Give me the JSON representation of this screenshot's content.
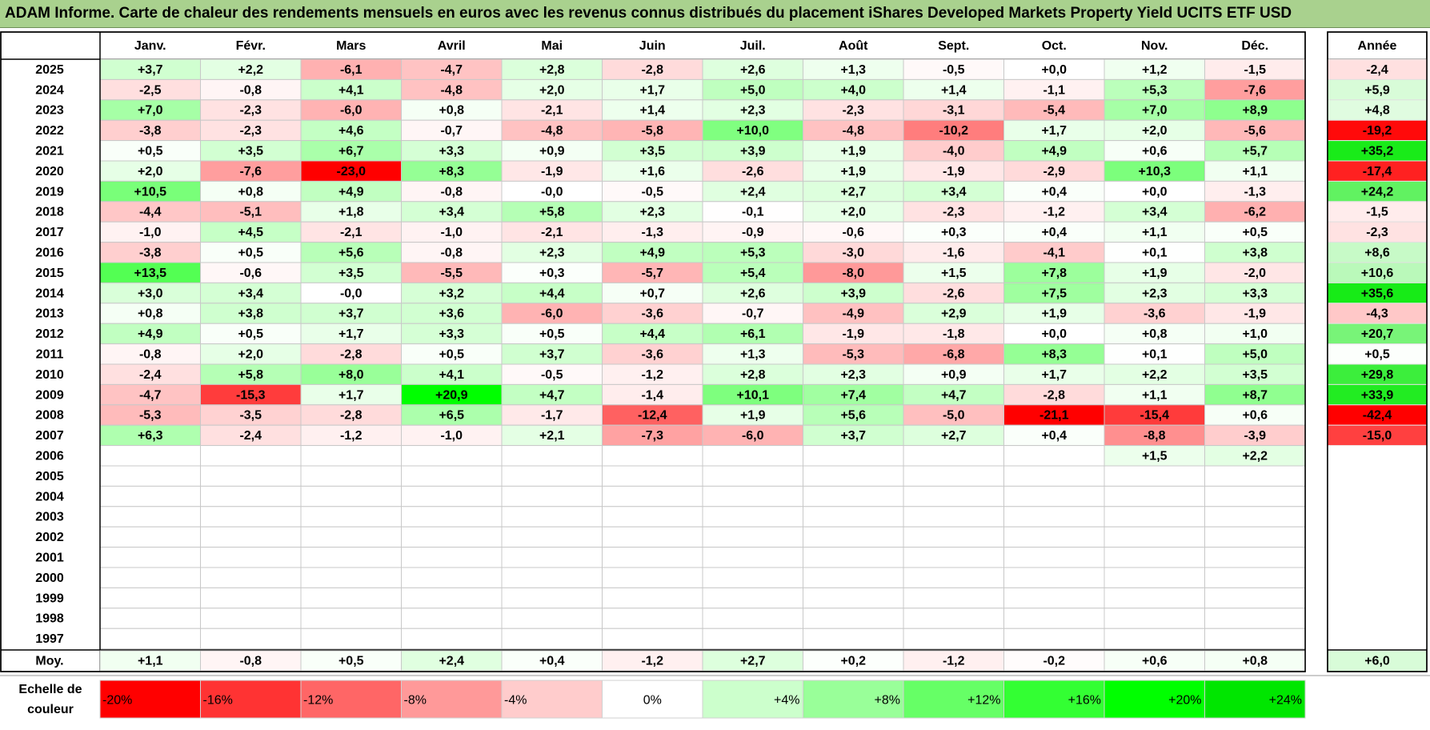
{
  "title": "ADAM Informe. Carte de chaleur des rendements mensuels en euros avec les revenus connus distribués du placement iShares Developed Markets Property Yield UCITS ETF USD",
  "chart_data": {
    "type": "heatmap",
    "columns": [
      "Janv.",
      "Févr.",
      "Mars",
      "Avril",
      "Mai",
      "Juin",
      "Juil.",
      "Août",
      "Sept.",
      "Oct.",
      "Nov.",
      "Déc."
    ],
    "year_column_label": "Année",
    "average_row_label": "Moy.",
    "rows": [
      {
        "year": "2025",
        "months": [
          "+3,7",
          "+2,2",
          "-6,1",
          "-4,7",
          "+2,8",
          "-2,8",
          "+2,6",
          "+1,3",
          "-0,5",
          "+0,0",
          "+1,2",
          "-1,5"
        ],
        "annual": "-2,4"
      },
      {
        "year": "2024",
        "months": [
          "-2,5",
          "-0,8",
          "+4,1",
          "-4,8",
          "+2,0",
          "+1,7",
          "+5,0",
          "+4,0",
          "+1,4",
          "-1,1",
          "+5,3",
          "-7,6"
        ],
        "annual": "+5,9"
      },
      {
        "year": "2023",
        "months": [
          "+7,0",
          "-2,3",
          "-6,0",
          "+0,8",
          "-2,1",
          "+1,4",
          "+2,3",
          "-2,3",
          "-3,1",
          "-5,4",
          "+7,0",
          "+8,9"
        ],
        "annual": "+4,8"
      },
      {
        "year": "2022",
        "months": [
          "-3,8",
          "-2,3",
          "+4,6",
          "-0,7",
          "-4,8",
          "-5,8",
          "+10,0",
          "-4,8",
          "-10,2",
          "+1,7",
          "+2,0",
          "-5,6"
        ],
        "annual": "-19,2"
      },
      {
        "year": "2021",
        "months": [
          "+0,5",
          "+3,5",
          "+6,7",
          "+3,3",
          "+0,9",
          "+3,5",
          "+3,9",
          "+1,9",
          "-4,0",
          "+4,9",
          "+0,6",
          "+5,7"
        ],
        "annual": "+35,2"
      },
      {
        "year": "2020",
        "months": [
          "+2,0",
          "-7,6",
          "-23,0",
          "+8,3",
          "-1,9",
          "+1,6",
          "-2,6",
          "+1,9",
          "-1,9",
          "-2,9",
          "+10,3",
          "+1,1"
        ],
        "annual": "-17,4"
      },
      {
        "year": "2019",
        "months": [
          "+10,5",
          "+0,8",
          "+4,9",
          "-0,8",
          "-0,0",
          "-0,5",
          "+2,4",
          "+2,7",
          "+3,4",
          "+0,4",
          "+0,0",
          "-1,3"
        ],
        "annual": "+24,2"
      },
      {
        "year": "2018",
        "months": [
          "-4,4",
          "-5,1",
          "+1,8",
          "+3,4",
          "+5,8",
          "+2,3",
          "-0,1",
          "+2,0",
          "-2,3",
          "-1,2",
          "+3,4",
          "-6,2"
        ],
        "annual": "-1,5"
      },
      {
        "year": "2017",
        "months": [
          "-1,0",
          "+4,5",
          "-2,1",
          "-1,0",
          "-2,1",
          "-1,3",
          "-0,9",
          "-0,6",
          "+0,3",
          "+0,4",
          "+1,1",
          "+0,5"
        ],
        "annual": "-2,3"
      },
      {
        "year": "2016",
        "months": [
          "-3,8",
          "+0,5",
          "+5,6",
          "-0,8",
          "+2,3",
          "+4,9",
          "+5,3",
          "-3,0",
          "-1,6",
          "-4,1",
          "+0,1",
          "+3,8"
        ],
        "annual": "+8,6"
      },
      {
        "year": "2015",
        "months": [
          "+13,5",
          "-0,6",
          "+3,5",
          "-5,5",
          "+0,3",
          "-5,7",
          "+5,4",
          "-8,0",
          "+1,5",
          "+7,8",
          "+1,9",
          "-2,0"
        ],
        "annual": "+10,6"
      },
      {
        "year": "2014",
        "months": [
          "+3,0",
          "+3,4",
          "-0,0",
          "+3,2",
          "+4,4",
          "+0,7",
          "+2,6",
          "+3,9",
          "-2,6",
          "+7,5",
          "+2,3",
          "+3,3"
        ],
        "annual": "+35,6"
      },
      {
        "year": "2013",
        "months": [
          "+0,8",
          "+3,8",
          "+3,7",
          "+3,6",
          "-6,0",
          "-3,6",
          "-0,7",
          "-4,9",
          "+2,9",
          "+1,9",
          "-3,6",
          "-1,9"
        ],
        "annual": "-4,3"
      },
      {
        "year": "2012",
        "months": [
          "+4,9",
          "+0,5",
          "+1,7",
          "+3,3",
          "+0,5",
          "+4,4",
          "+6,1",
          "-1,9",
          "-1,8",
          "+0,0",
          "+0,8",
          "+1,0"
        ],
        "annual": "+20,7"
      },
      {
        "year": "2011",
        "months": [
          "-0,8",
          "+2,0",
          "-2,8",
          "+0,5",
          "+3,7",
          "-3,6",
          "+1,3",
          "-5,3",
          "-6,8",
          "+8,3",
          "+0,1",
          "+5,0"
        ],
        "annual": "+0,5"
      },
      {
        "year": "2010",
        "months": [
          "-2,4",
          "+5,8",
          "+8,0",
          "+4,1",
          "-0,5",
          "-1,2",
          "+2,8",
          "+2,3",
          "+0,9",
          "+1,7",
          "+2,2",
          "+3,5"
        ],
        "annual": "+29,8"
      },
      {
        "year": "2009",
        "months": [
          "-4,7",
          "-15,3",
          "+1,7",
          "+20,9",
          "+4,7",
          "-1,4",
          "+10,1",
          "+7,4",
          "+4,7",
          "-2,8",
          "+1,1",
          "+8,7"
        ],
        "annual": "+33,9"
      },
      {
        "year": "2008",
        "months": [
          "-5,3",
          "-3,5",
          "-2,8",
          "+6,5",
          "-1,7",
          "-12,4",
          "+1,9",
          "+5,6",
          "-5,0",
          "-21,1",
          "-15,4",
          "+0,6"
        ],
        "annual": "-42,4"
      },
      {
        "year": "2007",
        "months": [
          "+6,3",
          "-2,4",
          "-1,2",
          "-1,0",
          "+2,1",
          "-7,3",
          "-6,0",
          "+3,7",
          "+2,7",
          "+0,4",
          "-8,8",
          "-3,9"
        ],
        "annual": "-15,0"
      },
      {
        "year": "2006",
        "months": [
          "",
          "",
          "",
          "",
          "",
          "",
          "",
          "",
          "",
          "",
          "+1,5",
          "+2,2"
        ],
        "annual": ""
      },
      {
        "year": "2005",
        "months": [
          "",
          "",
          "",
          "",
          "",
          "",
          "",
          "",
          "",
          "",
          "",
          ""
        ],
        "annual": ""
      },
      {
        "year": "2004",
        "months": [
          "",
          "",
          "",
          "",
          "",
          "",
          "",
          "",
          "",
          "",
          "",
          ""
        ],
        "annual": ""
      },
      {
        "year": "2003",
        "months": [
          "",
          "",
          "",
          "",
          "",
          "",
          "",
          "",
          "",
          "",
          "",
          ""
        ],
        "annual": ""
      },
      {
        "year": "2002",
        "months": [
          "",
          "",
          "",
          "",
          "",
          "",
          "",
          "",
          "",
          "",
          "",
          ""
        ],
        "annual": ""
      },
      {
        "year": "2001",
        "months": [
          "",
          "",
          "",
          "",
          "",
          "",
          "",
          "",
          "",
          "",
          "",
          ""
        ],
        "annual": ""
      },
      {
        "year": "2000",
        "months": [
          "",
          "",
          "",
          "",
          "",
          "",
          "",
          "",
          "",
          "",
          "",
          ""
        ],
        "annual": ""
      },
      {
        "year": "1999",
        "months": [
          "",
          "",
          "",
          "",
          "",
          "",
          "",
          "",
          "",
          "",
          "",
          ""
        ],
        "annual": ""
      },
      {
        "year": "1998",
        "months": [
          "",
          "",
          "",
          "",
          "",
          "",
          "",
          "",
          "",
          "",
          "",
          ""
        ],
        "annual": ""
      },
      {
        "year": "1997",
        "months": [
          "",
          "",
          "",
          "",
          "",
          "",
          "",
          "",
          "",
          "",
          "",
          ""
        ],
        "annual": ""
      }
    ],
    "averages": {
      "months": [
        "+1,1",
        "-0,8",
        "+0,5",
        "+2,4",
        "+0,4",
        "-1,2",
        "+2,7",
        "+0,2",
        "-1,2",
        "-0,2",
        "+0,6",
        "+0,8"
      ],
      "annual": "+6,0"
    },
    "scale": {
      "label_line1": "Echelle de",
      "label_line2": "couleur",
      "steps": [
        "-20%",
        "-16%",
        "-12%",
        "-8%",
        "-4%",
        "0%",
        "+4%",
        "+8%",
        "+12%",
        "+16%",
        "+20%",
        "+24%"
      ],
      "colors": [
        "#ff0000",
        "#ff3333",
        "#ff6666",
        "#ff9999",
        "#ffcccc",
        "#ffffff",
        "#ccffcc",
        "#99ff99",
        "#66ff66",
        "#33ff33",
        "#00ff00",
        "#00e600"
      ]
    },
    "colors": {
      "negative_max": "#ff0000",
      "neutral": "#ffffff",
      "positive_max": "#00ff00",
      "header_band": "#a9d18e"
    }
  }
}
